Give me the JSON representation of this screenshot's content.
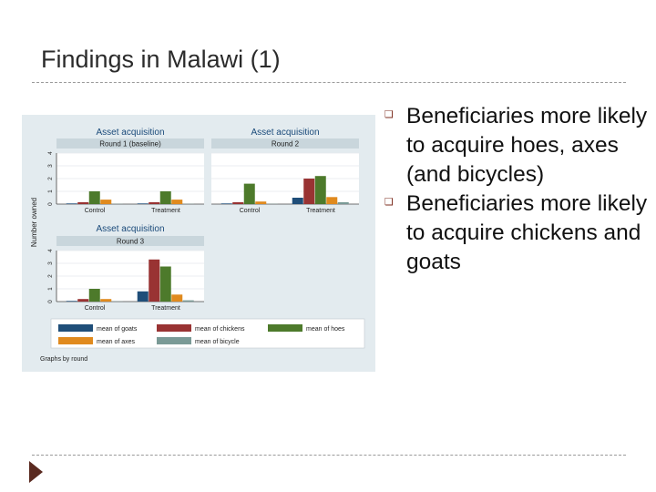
{
  "slide": {
    "title": "Findings in Malawi (1)",
    "bullets": [
      "Beneficiaries more likely to acquire hoes, axes (and bicycles)",
      "Beneficiaries more likely to acquire chickens and goats"
    ],
    "bullet_icon": "square-bullet-icon",
    "accent_color": "#7b2b1d"
  },
  "chart_data": {
    "type": "bar",
    "title": "Asset acquisition",
    "ylabel": "Number owned",
    "ylim": [
      0,
      4
    ],
    "yticks": [
      0,
      1,
      2,
      3,
      4
    ],
    "categories": [
      "Control",
      "Treatment"
    ],
    "grid": true,
    "footnote": "Graphs by round",
    "legend_position": "bottom",
    "series_styles": [
      {
        "name": "mean of goats",
        "color": "#1f4e79"
      },
      {
        "name": "mean of chickens",
        "color": "#993333"
      },
      {
        "name": "mean of hoes",
        "color": "#4d7a2b"
      },
      {
        "name": "mean of axes",
        "color": "#e08a1e"
      },
      {
        "name": "mean of bicycle",
        "color": "#7a9a96"
      }
    ],
    "panels": [
      {
        "title": "Asset acquisition",
        "subtitle": "Round 1 (baseline)",
        "values": [
          [
            0.05,
            0.15,
            1.0,
            0.35,
            0.02
          ],
          [
            0.05,
            0.15,
            1.0,
            0.35,
            0.02
          ]
        ]
      },
      {
        "title": "Asset acquisition",
        "subtitle": "Round 2",
        "values": [
          [
            0.05,
            0.15,
            1.6,
            0.2,
            0.02
          ],
          [
            0.5,
            2.0,
            2.2,
            0.55,
            0.15
          ]
        ]
      },
      {
        "title": "Asset acquisition",
        "subtitle": "Round 3",
        "values": [
          [
            0.05,
            0.2,
            1.0,
            0.2,
            0.02
          ],
          [
            0.8,
            3.3,
            2.75,
            0.55,
            0.1
          ]
        ]
      }
    ]
  }
}
